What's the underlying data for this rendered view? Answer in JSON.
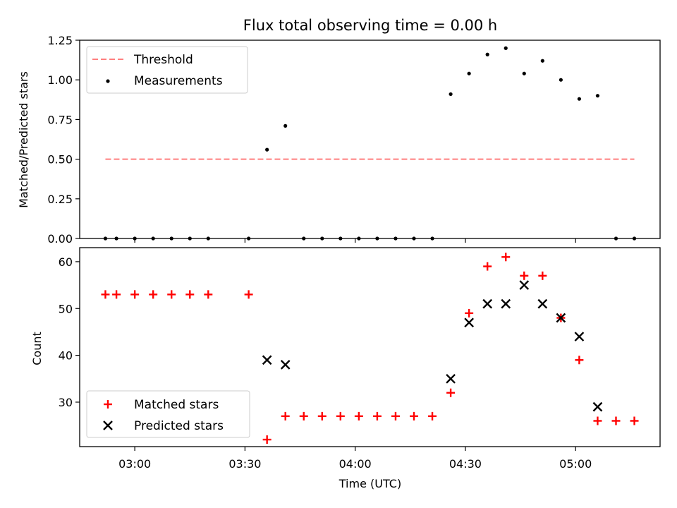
{
  "title": "Flux total observing time = 0.00 h",
  "chart_data": [
    {
      "type": "scatter",
      "title": "Flux total observing time = 0.00 h",
      "xlabel": "",
      "ylabel": "Matched/Predicted stars",
      "ylim": [
        0,
        1.25
      ],
      "yticks": [
        0.0,
        0.25,
        0.5,
        0.75,
        1.0,
        1.25
      ],
      "ytick_labels": [
        "0.00",
        "0.25",
        "0.50",
        "0.75",
        "1.00",
        "1.25"
      ],
      "legend": "top-left",
      "threshold": {
        "name": "Threshold",
        "color": "#ff7f7f",
        "value": 0.5,
        "x_range": [
          "02:52",
          "05:16"
        ]
      },
      "series": [
        {
          "name": "Measurements",
          "marker": "dot",
          "color": "#000000",
          "x": [
            "02:52",
            "02:55",
            "03:00",
            "03:05",
            "03:10",
            "03:15",
            "03:20",
            "03:31",
            "03:36",
            "03:41",
            "03:46",
            "03:51",
            "03:56",
            "04:01",
            "04:06",
            "04:11",
            "04:16",
            "04:21",
            "04:26",
            "04:31",
            "04:36",
            "04:41",
            "04:46",
            "04:51",
            "04:56",
            "05:01",
            "05:06",
            "05:11",
            "05:16"
          ],
          "values": [
            0,
            0,
            0,
            0,
            0,
            0,
            0,
            0,
            0.56,
            0.71,
            0,
            0,
            0,
            0,
            0,
            0,
            0,
            0,
            0.91,
            1.04,
            1.16,
            1.2,
            1.04,
            1.12,
            1.0,
            0.88,
            0.9,
            0,
            0
          ]
        }
      ]
    },
    {
      "type": "scatter",
      "title": "",
      "xlabel": "Time (UTC)",
      "ylabel": "Count",
      "ylim": [
        20.5,
        63
      ],
      "yticks": [
        30,
        40,
        50,
        60
      ],
      "xticks": [
        "03:00",
        "03:30",
        "04:00",
        "04:30",
        "05:00"
      ],
      "xlim": [
        "02:45",
        "05:23"
      ],
      "legend": "bottom-left",
      "series": [
        {
          "name": "Matched stars",
          "marker": "plus",
          "color": "#ff0000",
          "x": [
            "02:52",
            "02:55",
            "03:00",
            "03:05",
            "03:10",
            "03:15",
            "03:20",
            "03:31",
            "03:36",
            "03:41",
            "03:46",
            "03:51",
            "03:56",
            "04:01",
            "04:06",
            "04:11",
            "04:16",
            "04:21",
            "04:26",
            "04:31",
            "04:36",
            "04:41",
            "04:46",
            "04:51",
            "04:56",
            "05:01",
            "05:06",
            "05:11",
            "05:16"
          ],
          "values": [
            53,
            53,
            53,
            53,
            53,
            53,
            53,
            53,
            22,
            27,
            27,
            27,
            27,
            27,
            27,
            27,
            27,
            27,
            32,
            49,
            59,
            61,
            57,
            57,
            48,
            39,
            26,
            26,
            26
          ]
        },
        {
          "name": "Predicted stars",
          "marker": "x",
          "color": "#000000",
          "x": [
            "03:36",
            "03:41",
            "04:26",
            "04:31",
            "04:36",
            "04:41",
            "04:46",
            "04:51",
            "04:56",
            "05:01",
            "05:06"
          ],
          "values": [
            39,
            38,
            35,
            47,
            51,
            51,
            55,
            51,
            48,
            44,
            29
          ]
        }
      ]
    }
  ]
}
